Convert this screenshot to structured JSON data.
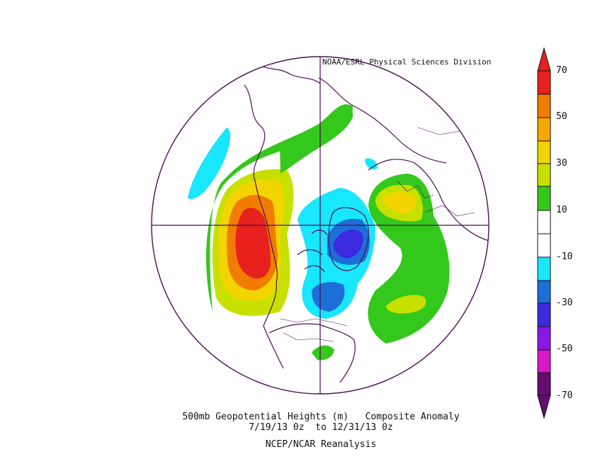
{
  "credit": "NOAA/ESRL Physical Sciences Division",
  "caption": {
    "line1": "500mb Geopotential Heights (m)   Composite Anomaly",
    "line2": "7/19/13 0z  to 12/31/13 0z",
    "line3": "NCEP/NCAR Reanalysis"
  },
  "colorbar": {
    "labels": [
      "70",
      "50",
      "30",
      "10",
      "-10",
      "-30",
      "-50",
      "-70"
    ],
    "colors": [
      "#e8201e",
      "#f07c00",
      "#f5a800",
      "#f2d400",
      "#c7e000",
      "#34c71c",
      "#ffffff",
      "#ffffff",
      "#19e6ff",
      "#1e6ed8",
      "#3a2ae0",
      "#8a18e2",
      "#d718c6",
      "#640f70"
    ]
  },
  "map": {
    "projection": "north-polar-stereographic",
    "fill_colors": {
      "pos10_30": "#34c71c",
      "pos30": "#c7e000",
      "pos30_50": "#f2d400",
      "pos50": "#f5a800",
      "pos70": "#f07c00",
      "pos_max": "#e8201e",
      "neg10": "#19e6ff",
      "neg30": "#1e6ed8",
      "neg50": "#3a2ae0"
    },
    "coastline_color": "#4a1050"
  }
}
